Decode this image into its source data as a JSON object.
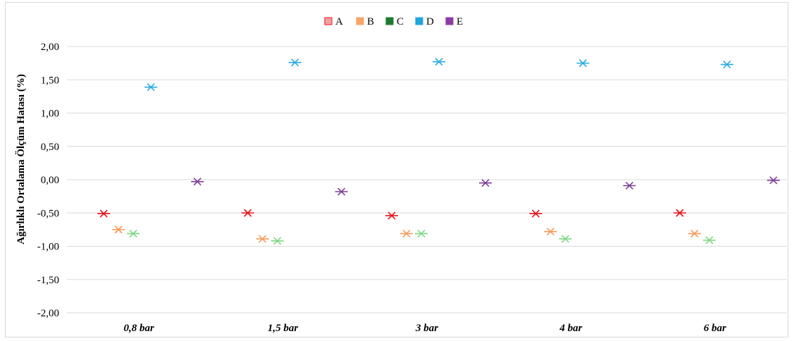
{
  "chart_data": {
    "type": "scatter",
    "title": "",
    "xlabel": "",
    "ylabel": "Ağırlıklı Ortalama Ölçüm Hatası (%)",
    "categories": [
      "0,8 bar",
      "1,5 bar",
      "3 bar",
      "4 bar",
      "6 bar"
    ],
    "ylim": [
      -2.0,
      2.0
    ],
    "yticks": [
      "2,00",
      "1,50",
      "1,00",
      "0,50",
      "0,00",
      "-0,50",
      "-1,00",
      "-1,50",
      "-2,00"
    ],
    "ytick_values": [
      2.0,
      1.5,
      1.0,
      0.5,
      0.0,
      -0.5,
      -1.0,
      -1.5,
      -2.0
    ],
    "grid": true,
    "legend_position": "top-center",
    "series": [
      {
        "name": "A",
        "color": "#e8131e",
        "legend_fill": "#f4a0a0",
        "legend_border": "#e8131e",
        "values": [
          -0.51,
          -0.5,
          -0.54,
          -0.51,
          -0.5
        ]
      },
      {
        "name": "B",
        "color": "#f79a5a",
        "legend_fill": "#f7a566",
        "legend_border": "#f7a566",
        "values": [
          -0.75,
          -0.89,
          -0.81,
          -0.78,
          -0.81
        ]
      },
      {
        "name": "C",
        "color": "#7ed884",
        "legend_fill": "#1b7a2c",
        "legend_border": "#1b7a2c",
        "values": [
          -0.81,
          -0.92,
          -0.81,
          -0.89,
          -0.91
        ]
      },
      {
        "name": "D",
        "color": "#29abe2",
        "legend_fill": "#1ea5e0",
        "legend_border": "#1ea5e0",
        "values": [
          1.39,
          1.76,
          1.77,
          1.75,
          1.73
        ]
      },
      {
        "name": "E",
        "color": "#7e3f98",
        "legend_fill": "#8e3aa3",
        "legend_border": "#8e3aa3",
        "values": [
          -0.03,
          -0.18,
          -0.05,
          -0.09,
          -0.01
        ]
      }
    ]
  }
}
